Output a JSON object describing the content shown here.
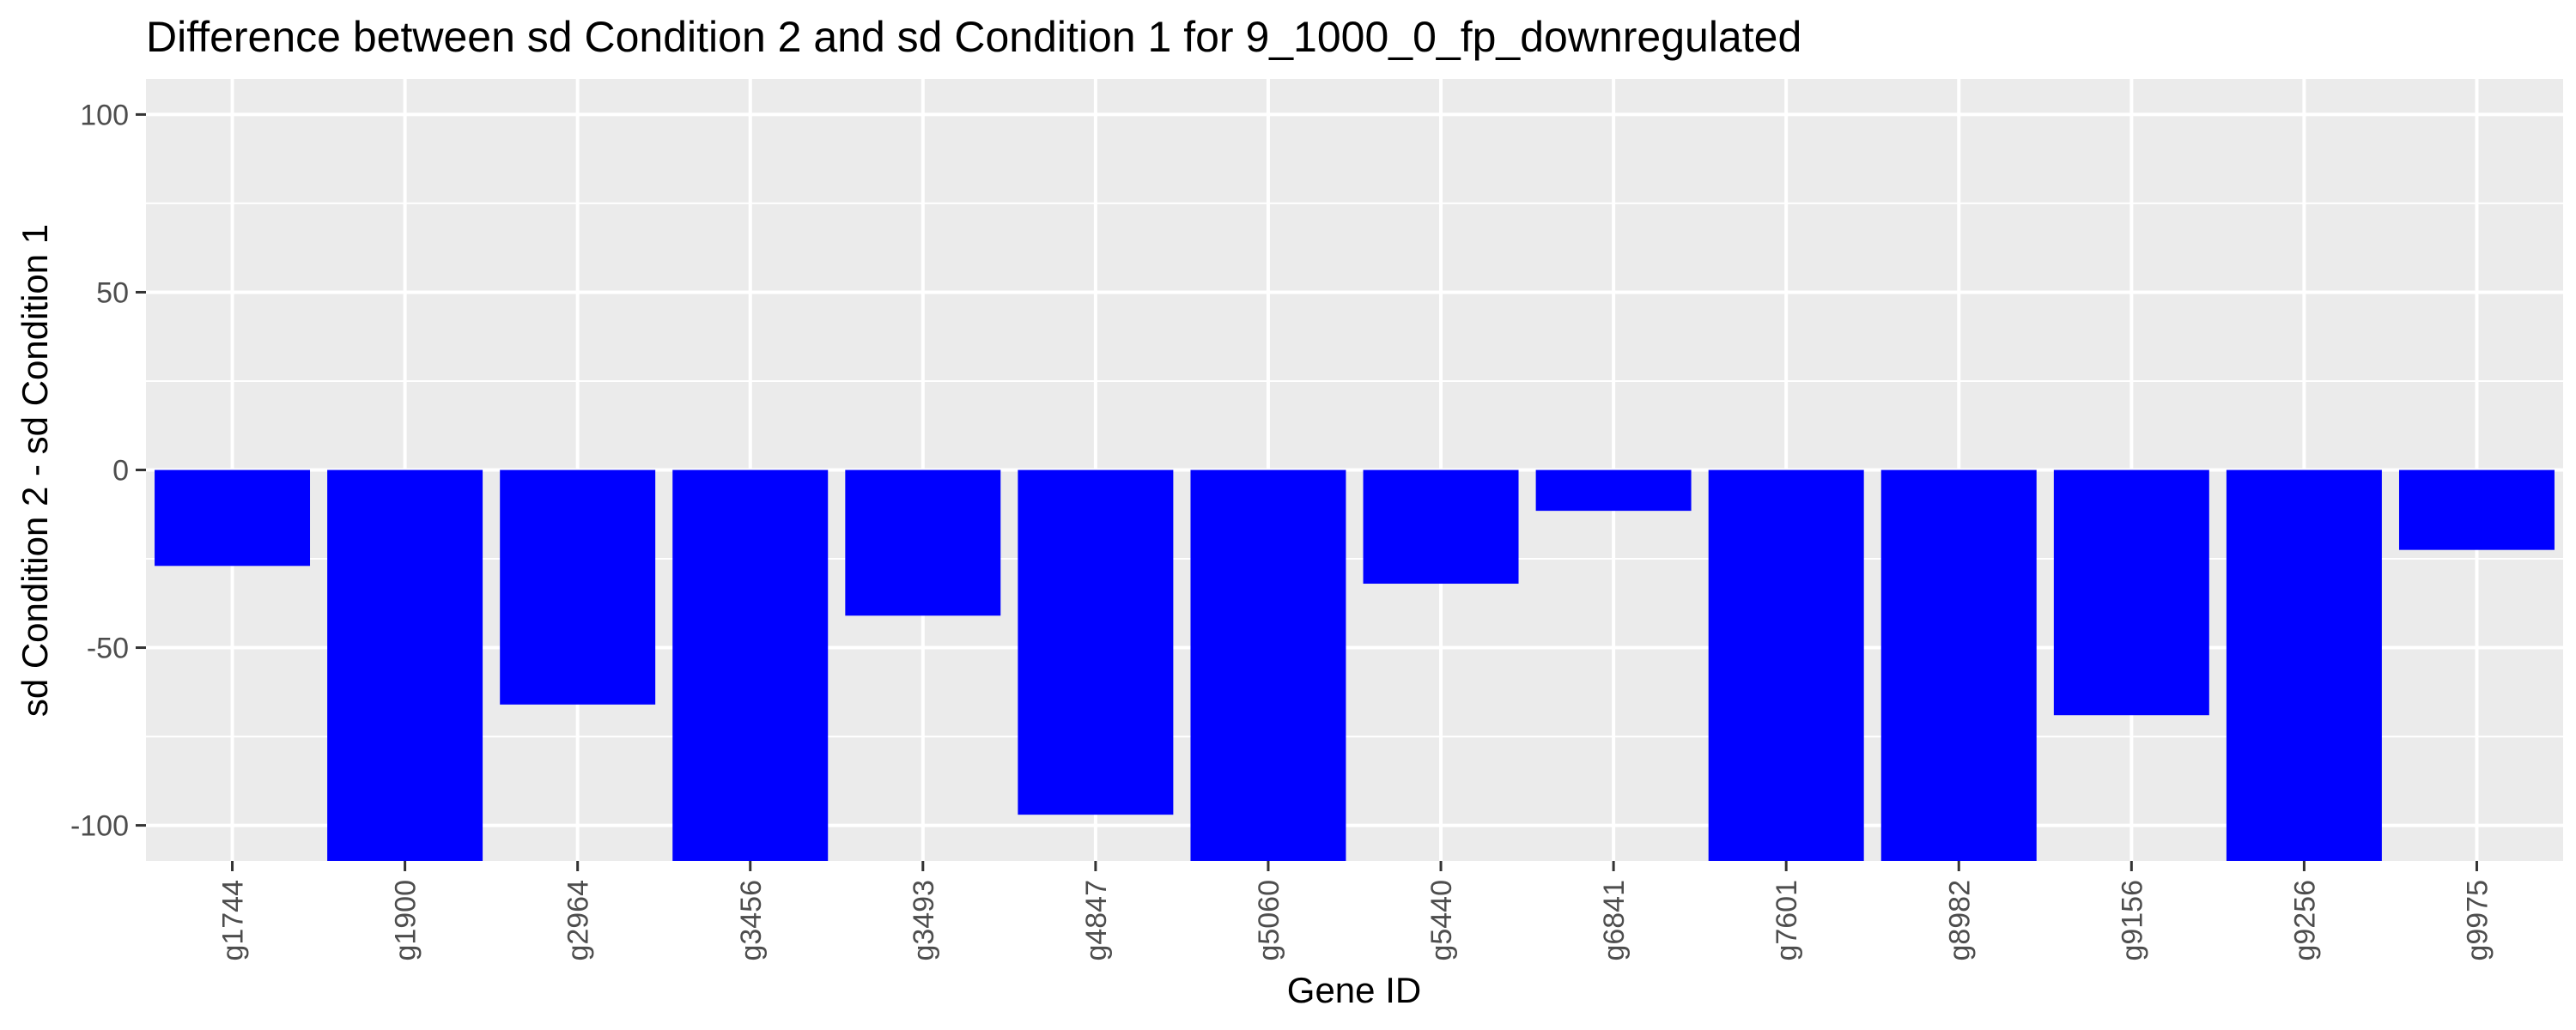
{
  "chart_data": {
    "type": "bar",
    "title": "Difference between sd Condition 2 and sd Condition 1 for 9_1000_0_fp_downregulated",
    "xlabel": "Gene ID",
    "ylabel": "sd Condition 2 - sd Condition 1",
    "categories": [
      "g1744",
      "g1900",
      "g2964",
      "g3456",
      "g3493",
      "g4847",
      "g5060",
      "g5440",
      "g6841",
      "g7601",
      "g8982",
      "g9156",
      "g9256",
      "g9975"
    ],
    "values": [
      -27,
      -110,
      -66,
      -110,
      -41,
      -97,
      -110,
      -32,
      -11.5,
      -110,
      -110,
      -69,
      -110,
      -22.5
    ],
    "ylim": [
      -110,
      110
    ],
    "yticks": [
      -100,
      -50,
      0,
      50,
      100
    ],
    "ytick_labels": [
      "-100",
      "-50",
      "0",
      "50",
      "100"
    ],
    "bar_color": "#0000FF",
    "panel_background": "#EBEBEB",
    "grid_color": "#FFFFFF",
    "grid": true,
    "legend": "none"
  }
}
